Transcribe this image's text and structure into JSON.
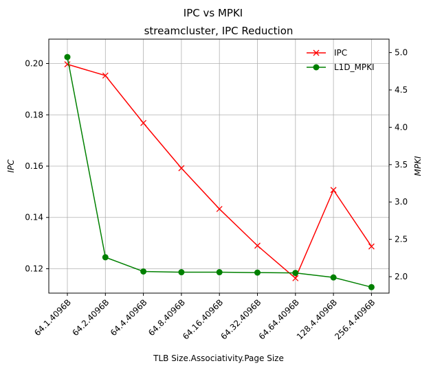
{
  "chart_data": {
    "type": "line",
    "suptitle": "IPC vs MPKI",
    "title": "streamcluster, IPC Reduction",
    "xlabel": "TLB Size.Associativity.Page Size",
    "ylabel_left": "IPC",
    "ylabel_right": "MPKI",
    "categories": [
      "64.1.4096B",
      "64.2.4096B",
      "64.4.4096B",
      "64.8.4096B",
      "64.16.4096B",
      "64.32.4096B",
      "64.64.4096B",
      "128.4.4096B",
      "256.4.4096B"
    ],
    "y_left": {
      "lim": [
        0.1105,
        0.2095
      ],
      "ticks": [
        0.12,
        0.14,
        0.16,
        0.18,
        0.2
      ],
      "tick_labels": [
        "0.12",
        "0.14",
        "0.16",
        "0.18",
        "0.20"
      ]
    },
    "y_right": {
      "lim": [
        1.78,
        5.18
      ],
      "ticks": [
        2.0,
        2.5,
        3.0,
        3.5,
        4.0,
        4.5,
        5.0
      ],
      "tick_labels": [
        "2.0",
        "2.5",
        "3.0",
        "3.5",
        "4.0",
        "4.5",
        "5.0"
      ]
    },
    "grid": true,
    "legend_position": "top-right",
    "series": [
      {
        "name": "IPC",
        "axis": "left",
        "color": "#ff0000",
        "marker": "x",
        "values": [
          0.1997,
          0.1953,
          0.1768,
          0.1592,
          0.1433,
          0.129,
          0.1163,
          0.1507,
          0.1287
        ]
      },
      {
        "name": "L1D_MPKI",
        "axis": "right",
        "color": "#008000",
        "marker": "circle",
        "values": [
          4.94,
          2.26,
          2.07,
          2.06,
          2.06,
          2.055,
          2.05,
          1.99,
          1.86
        ]
      }
    ]
  }
}
